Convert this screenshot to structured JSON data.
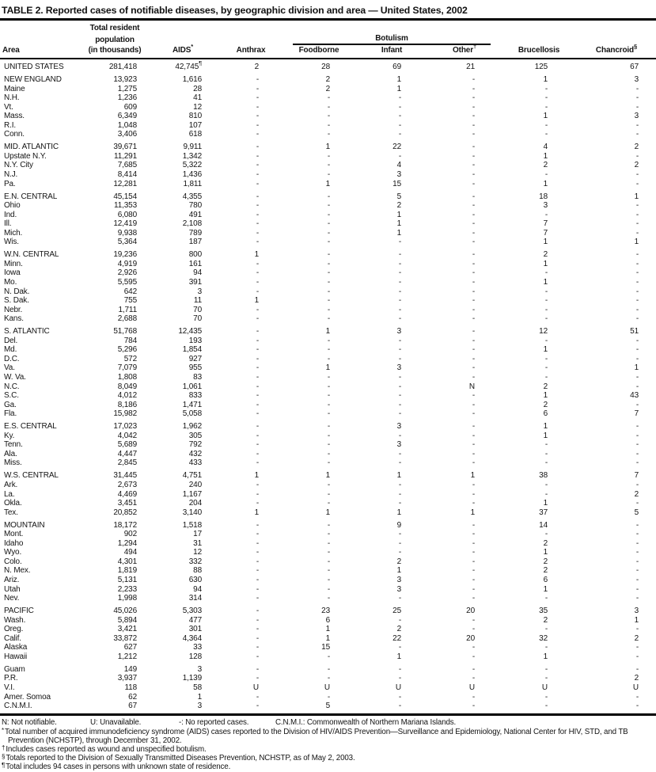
{
  "title": "TABLE 2. Reported cases of notifiable diseases, by geographic division and area — United States, 2002",
  "header": {
    "area": "Area",
    "population": [
      "Total resident",
      "population",
      "(in thousands)"
    ],
    "aids": {
      "label": "AIDS",
      "sup": "*"
    },
    "anthrax": "Anthrax",
    "botulism_group": "Botulism",
    "foodborne": "Foodborne",
    "infant": "Infant",
    "other": {
      "label": "Other",
      "sup": "†"
    },
    "brucellosis": "Brucellosis",
    "chancroid": {
      "label": "Chancroid",
      "sup": "§"
    }
  },
  "rows": [
    {
      "area": "UNITED STATES",
      "pop": "281,418",
      "aids": "42,745",
      "aids_sup": "¶",
      "anthrax": "2",
      "foodborne": "28",
      "infant": "69",
      "other": "21",
      "brucellosis": "125",
      "chancroid": "67"
    },
    {
      "area": "NEW ENGLAND",
      "pop": "13,923",
      "aids": "1,616",
      "anthrax": "-",
      "foodborne": "2",
      "infant": "1",
      "other": "-",
      "brucellosis": "1",
      "chancroid": "3",
      "gap": true
    },
    {
      "area": "Maine",
      "pop": "1,275",
      "aids": "28",
      "anthrax": "-",
      "foodborne": "2",
      "infant": "1",
      "other": "-",
      "brucellosis": "-",
      "chancroid": "-"
    },
    {
      "area": "N.H.",
      "pop": "1,236",
      "aids": "41",
      "anthrax": "-",
      "foodborne": "-",
      "infant": "-",
      "other": "-",
      "brucellosis": "-",
      "chancroid": "-"
    },
    {
      "area": "Vt.",
      "pop": "609",
      "aids": "12",
      "anthrax": "-",
      "foodborne": "-",
      "infant": "-",
      "other": "-",
      "brucellosis": "-",
      "chancroid": "-"
    },
    {
      "area": "Mass.",
      "pop": "6,349",
      "aids": "810",
      "anthrax": "-",
      "foodborne": "-",
      "infant": "-",
      "other": "-",
      "brucellosis": "1",
      "chancroid": "3"
    },
    {
      "area": "R.I.",
      "pop": "1,048",
      "aids": "107",
      "anthrax": "-",
      "foodborne": "-",
      "infant": "-",
      "other": "-",
      "brucellosis": "-",
      "chancroid": "-"
    },
    {
      "area": "Conn.",
      "pop": "3,406",
      "aids": "618",
      "anthrax": "-",
      "foodborne": "-",
      "infant": "-",
      "other": "-",
      "brucellosis": "-",
      "chancroid": "-"
    },
    {
      "area": "MID. ATLANTIC",
      "pop": "39,671",
      "aids": "9,911",
      "anthrax": "-",
      "foodborne": "1",
      "infant": "22",
      "other": "-",
      "brucellosis": "4",
      "chancroid": "2",
      "gap": true
    },
    {
      "area": "Upstate N.Y.",
      "pop": "11,291",
      "aids": "1,342",
      "anthrax": "-",
      "foodborne": "-",
      "infant": "-",
      "other": "-",
      "brucellosis": "1",
      "chancroid": "-"
    },
    {
      "area": "N.Y. City",
      "pop": "7,685",
      "aids": "5,322",
      "anthrax": "-",
      "foodborne": "-",
      "infant": "4",
      "other": "-",
      "brucellosis": "2",
      "chancroid": "2"
    },
    {
      "area": "N.J.",
      "pop": "8,414",
      "aids": "1,436",
      "anthrax": "-",
      "foodborne": "-",
      "infant": "3",
      "other": "-",
      "brucellosis": "-",
      "chancroid": "-"
    },
    {
      "area": "Pa.",
      "pop": "12,281",
      "aids": "1,811",
      "anthrax": "-",
      "foodborne": "1",
      "infant": "15",
      "other": "-",
      "brucellosis": "1",
      "chancroid": "-"
    },
    {
      "area": "E.N. CENTRAL",
      "pop": "45,154",
      "aids": "4,355",
      "anthrax": "-",
      "foodborne": "-",
      "infant": "5",
      "other": "-",
      "brucellosis": "18",
      "chancroid": "1",
      "gap": true
    },
    {
      "area": "Ohio",
      "pop": "11,353",
      "aids": "780",
      "anthrax": "-",
      "foodborne": "-",
      "infant": "2",
      "other": "-",
      "brucellosis": "3",
      "chancroid": "-"
    },
    {
      "area": "Ind.",
      "pop": "6,080",
      "aids": "491",
      "anthrax": "-",
      "foodborne": "-",
      "infant": "1",
      "other": "-",
      "brucellosis": "-",
      "chancroid": "-"
    },
    {
      "area": "Ill.",
      "pop": "12,419",
      "aids": "2,108",
      "anthrax": "-",
      "foodborne": "-",
      "infant": "1",
      "other": "-",
      "brucellosis": "7",
      "chancroid": "-"
    },
    {
      "area": "Mich.",
      "pop": "9,938",
      "aids": "789",
      "anthrax": "-",
      "foodborne": "-",
      "infant": "1",
      "other": "-",
      "brucellosis": "7",
      "chancroid": "-"
    },
    {
      "area": "Wis.",
      "pop": "5,364",
      "aids": "187",
      "anthrax": "-",
      "foodborne": "-",
      "infant": "-",
      "other": "-",
      "brucellosis": "1",
      "chancroid": "1"
    },
    {
      "area": "W.N. CENTRAL",
      "pop": "19,236",
      "aids": "800",
      "anthrax": "1",
      "foodborne": "-",
      "infant": "-",
      "other": "-",
      "brucellosis": "2",
      "chancroid": "-",
      "gap": true
    },
    {
      "area": "Minn.",
      "pop": "4,919",
      "aids": "161",
      "anthrax": "-",
      "foodborne": "-",
      "infant": "-",
      "other": "-",
      "brucellosis": "1",
      "chancroid": "-"
    },
    {
      "area": "Iowa",
      "pop": "2,926",
      "aids": "94",
      "anthrax": "-",
      "foodborne": "-",
      "infant": "-",
      "other": "-",
      "brucellosis": "-",
      "chancroid": "-"
    },
    {
      "area": "Mo.",
      "pop": "5,595",
      "aids": "391",
      "anthrax": "-",
      "foodborne": "-",
      "infant": "-",
      "other": "-",
      "brucellosis": "1",
      "chancroid": "-"
    },
    {
      "area": "N. Dak.",
      "pop": "642",
      "aids": "3",
      "anthrax": "-",
      "foodborne": "-",
      "infant": "-",
      "other": "-",
      "brucellosis": "-",
      "chancroid": "-"
    },
    {
      "area": "S. Dak.",
      "pop": "755",
      "aids": "11",
      "anthrax": "1",
      "foodborne": "-",
      "infant": "-",
      "other": "-",
      "brucellosis": "-",
      "chancroid": "-"
    },
    {
      "area": "Nebr.",
      "pop": "1,711",
      "aids": "70",
      "anthrax": "-",
      "foodborne": "-",
      "infant": "-",
      "other": "-",
      "brucellosis": "-",
      "chancroid": "-"
    },
    {
      "area": "Kans.",
      "pop": "2,688",
      "aids": "70",
      "anthrax": "-",
      "foodborne": "-",
      "infant": "-",
      "other": "-",
      "brucellosis": "-",
      "chancroid": "-"
    },
    {
      "area": "S. ATLANTIC",
      "pop": "51,768",
      "aids": "12,435",
      "anthrax": "-",
      "foodborne": "1",
      "infant": "3",
      "other": "-",
      "brucellosis": "12",
      "chancroid": "51",
      "gap": true
    },
    {
      "area": "Del.",
      "pop": "784",
      "aids": "193",
      "anthrax": "-",
      "foodborne": "-",
      "infant": "-",
      "other": "-",
      "brucellosis": "-",
      "chancroid": "-"
    },
    {
      "area": "Md.",
      "pop": "5,296",
      "aids": "1,854",
      "anthrax": "-",
      "foodborne": "-",
      "infant": "-",
      "other": "-",
      "brucellosis": "1",
      "chancroid": "-"
    },
    {
      "area": "D.C.",
      "pop": "572",
      "aids": "927",
      "anthrax": "-",
      "foodborne": "-",
      "infant": "-",
      "other": "-",
      "brucellosis": "-",
      "chancroid": "-"
    },
    {
      "area": "Va.",
      "pop": "7,079",
      "aids": "955",
      "anthrax": "-",
      "foodborne": "1",
      "infant": "3",
      "other": "-",
      "brucellosis": "-",
      "chancroid": "1"
    },
    {
      "area": "W. Va.",
      "pop": "1,808",
      "aids": "83",
      "anthrax": "-",
      "foodborne": "-",
      "infant": "-",
      "other": "-",
      "brucellosis": "-",
      "chancroid": "-"
    },
    {
      "area": "N.C.",
      "pop": "8,049",
      "aids": "1,061",
      "anthrax": "-",
      "foodborne": "-",
      "infant": "-",
      "other": "N",
      "brucellosis": "2",
      "chancroid": "-"
    },
    {
      "area": "S.C.",
      "pop": "4,012",
      "aids": "833",
      "anthrax": "-",
      "foodborne": "-",
      "infant": "-",
      "other": "-",
      "brucellosis": "1",
      "chancroid": "43"
    },
    {
      "area": "Ga.",
      "pop": "8,186",
      "aids": "1,471",
      "anthrax": "-",
      "foodborne": "-",
      "infant": "-",
      "other": "-",
      "brucellosis": "2",
      "chancroid": "-"
    },
    {
      "area": "Fla.",
      "pop": "15,982",
      "aids": "5,058",
      "anthrax": "-",
      "foodborne": "-",
      "infant": "-",
      "other": "-",
      "brucellosis": "6",
      "chancroid": "7"
    },
    {
      "area": "E.S. CENTRAL",
      "pop": "17,023",
      "aids": "1,962",
      "anthrax": "-",
      "foodborne": "-",
      "infant": "3",
      "other": "-",
      "brucellosis": "1",
      "chancroid": "-",
      "gap": true
    },
    {
      "area": "Ky.",
      "pop": "4,042",
      "aids": "305",
      "anthrax": "-",
      "foodborne": "-",
      "infant": "-",
      "other": "-",
      "brucellosis": "1",
      "chancroid": "-"
    },
    {
      "area": "Tenn.",
      "pop": "5,689",
      "aids": "792",
      "anthrax": "-",
      "foodborne": "-",
      "infant": "3",
      "other": "-",
      "brucellosis": "-",
      "chancroid": "-"
    },
    {
      "area": "Ala.",
      "pop": "4,447",
      "aids": "432",
      "anthrax": "-",
      "foodborne": "-",
      "infant": "-",
      "other": "-",
      "brucellosis": "-",
      "chancroid": "-"
    },
    {
      "area": "Miss.",
      "pop": "2,845",
      "aids": "433",
      "anthrax": "-",
      "foodborne": "-",
      "infant": "-",
      "other": "-",
      "brucellosis": "-",
      "chancroid": "-"
    },
    {
      "area": "W.S. CENTRAL",
      "pop": "31,445",
      "aids": "4,751",
      "anthrax": "1",
      "foodborne": "1",
      "infant": "1",
      "other": "1",
      "brucellosis": "38",
      "chancroid": "7",
      "gap": true
    },
    {
      "area": "Ark.",
      "pop": "2,673",
      "aids": "240",
      "anthrax": "-",
      "foodborne": "-",
      "infant": "-",
      "other": "-",
      "brucellosis": "-",
      "chancroid": "-"
    },
    {
      "area": "La.",
      "pop": "4,469",
      "aids": "1,167",
      "anthrax": "-",
      "foodborne": "-",
      "infant": "-",
      "other": "-",
      "brucellosis": "-",
      "chancroid": "2"
    },
    {
      "area": "Okla.",
      "pop": "3,451",
      "aids": "204",
      "anthrax": "-",
      "foodborne": "-",
      "infant": "-",
      "other": "-",
      "brucellosis": "1",
      "chancroid": "-"
    },
    {
      "area": "Tex.",
      "pop": "20,852",
      "aids": "3,140",
      "anthrax": "1",
      "foodborne": "1",
      "infant": "1",
      "other": "1",
      "brucellosis": "37",
      "chancroid": "5"
    },
    {
      "area": "MOUNTAIN",
      "pop": "18,172",
      "aids": "1,518",
      "anthrax": "-",
      "foodborne": "-",
      "infant": "9",
      "other": "-",
      "brucellosis": "14",
      "chancroid": "-",
      "gap": true
    },
    {
      "area": "Mont.",
      "pop": "902",
      "aids": "17",
      "anthrax": "-",
      "foodborne": "-",
      "infant": "-",
      "other": "-",
      "brucellosis": "-",
      "chancroid": "-"
    },
    {
      "area": "Idaho",
      "pop": "1,294",
      "aids": "31",
      "anthrax": "-",
      "foodborne": "-",
      "infant": "-",
      "other": "-",
      "brucellosis": "2",
      "chancroid": "-"
    },
    {
      "area": "Wyo.",
      "pop": "494",
      "aids": "12",
      "anthrax": "-",
      "foodborne": "-",
      "infant": "-",
      "other": "-",
      "brucellosis": "1",
      "chancroid": "-"
    },
    {
      "area": "Colo.",
      "pop": "4,301",
      "aids": "332",
      "anthrax": "-",
      "foodborne": "-",
      "infant": "2",
      "other": "-",
      "brucellosis": "2",
      "chancroid": "-"
    },
    {
      "area": "N. Mex.",
      "pop": "1,819",
      "aids": "88",
      "anthrax": "-",
      "foodborne": "-",
      "infant": "1",
      "other": "-",
      "brucellosis": "2",
      "chancroid": "-"
    },
    {
      "area": "Ariz.",
      "pop": "5,131",
      "aids": "630",
      "anthrax": "-",
      "foodborne": "-",
      "infant": "3",
      "other": "-",
      "brucellosis": "6",
      "chancroid": "-"
    },
    {
      "area": "Utah",
      "pop": "2,233",
      "aids": "94",
      "anthrax": "-",
      "foodborne": "-",
      "infant": "3",
      "other": "-",
      "brucellosis": "1",
      "chancroid": "-"
    },
    {
      "area": "Nev.",
      "pop": "1,998",
      "aids": "314",
      "anthrax": "-",
      "foodborne": "-",
      "infant": "-",
      "other": "-",
      "brucellosis": "-",
      "chancroid": "-"
    },
    {
      "area": "PACIFIC",
      "pop": "45,026",
      "aids": "5,303",
      "anthrax": "-",
      "foodborne": "23",
      "infant": "25",
      "other": "20",
      "brucellosis": "35",
      "chancroid": "3",
      "gap": true
    },
    {
      "area": "Wash.",
      "pop": "5,894",
      "aids": "477",
      "anthrax": "-",
      "foodborne": "6",
      "infant": "-",
      "other": "-",
      "brucellosis": "2",
      "chancroid": "1"
    },
    {
      "area": "Oreg.",
      "pop": "3,421",
      "aids": "301",
      "anthrax": "-",
      "foodborne": "1",
      "infant": "2",
      "other": "-",
      "brucellosis": "-",
      "chancroid": "-"
    },
    {
      "area": "Calif.",
      "pop": "33,872",
      "aids": "4,364",
      "anthrax": "-",
      "foodborne": "1",
      "infant": "22",
      "other": "20",
      "brucellosis": "32",
      "chancroid": "2"
    },
    {
      "area": "Alaska",
      "pop": "627",
      "aids": "33",
      "anthrax": "-",
      "foodborne": "15",
      "infant": "-",
      "other": "-",
      "brucellosis": "-",
      "chancroid": "-"
    },
    {
      "area": "Hawaii",
      "pop": "1,212",
      "aids": "128",
      "anthrax": "-",
      "foodborne": "-",
      "infant": "1",
      "other": "-",
      "brucellosis": "1",
      "chancroid": "-"
    },
    {
      "area": "Guam",
      "pop": "149",
      "aids": "3",
      "anthrax": "-",
      "foodborne": "-",
      "infant": "-",
      "other": "-",
      "brucellosis": "-",
      "chancroid": "-",
      "gap": true
    },
    {
      "area": "P.R.",
      "pop": "3,937",
      "aids": "1,139",
      "anthrax": "-",
      "foodborne": "-",
      "infant": "-",
      "other": "-",
      "brucellosis": "-",
      "chancroid": "2"
    },
    {
      "area": "V.I.",
      "pop": "118",
      "aids": "58",
      "anthrax": "U",
      "foodborne": "U",
      "infant": "U",
      "other": "U",
      "brucellosis": "U",
      "chancroid": "U"
    },
    {
      "area": "Amer. Somoa",
      "pop": "62",
      "aids": "1",
      "anthrax": "-",
      "foodborne": "-",
      "infant": "-",
      "other": "-",
      "brucellosis": "-",
      "chancroid": "-"
    },
    {
      "area": "C.N.M.I.",
      "pop": "67",
      "aids": "3",
      "anthrax": "-",
      "foodborne": "5",
      "infant": "-",
      "other": "-",
      "brucellosis": "-",
      "chancroid": "-"
    }
  ],
  "legend": {
    "items": [
      "N: Not notifiable.",
      "U: Unavailable.",
      "-: No reported cases.",
      "C.N.M.I.: Commonwealth of Northern Mariana Islands."
    ]
  },
  "footnotes": [
    {
      "marker": "*",
      "text": "Total number of acquired immunodeficiency syndrome (AIDS) cases reported to the Division of HIV/AIDS Prevention—Surveillance and Epidemiology, National Center for HIV, STD, and TB Prevention (NCHSTP), through December 31, 2002."
    },
    {
      "marker": "†",
      "text": "Includes cases reported as wound and unspecified botulism."
    },
    {
      "marker": "§",
      "text": "Totals reported to the Division of Sexually Transmitted Diseases Prevention, NCHSTP, as of May 2, 2003."
    },
    {
      "marker": "¶",
      "text": "Total includes 94 cases in persons with unknown state of residence."
    }
  ]
}
